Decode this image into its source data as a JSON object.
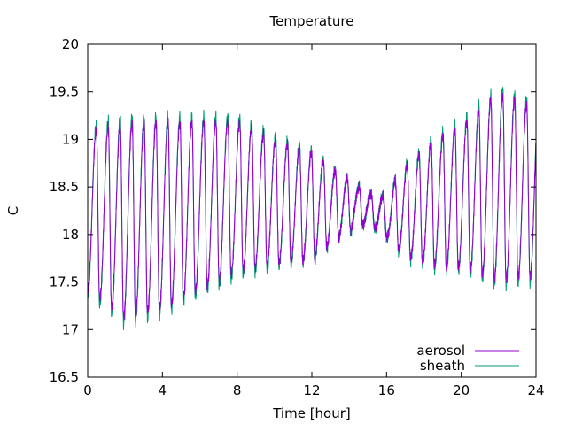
{
  "chart_data": {
    "type": "line",
    "title": "Temperature",
    "xlabel": "Time [hour]",
    "ylabel": "C",
    "xlim": [
      0,
      24
    ],
    "ylim": [
      16.5,
      20
    ],
    "xticks": [
      0,
      4,
      8,
      12,
      16,
      20,
      24
    ],
    "yticks": [
      16.5,
      17,
      17.5,
      18,
      18.5,
      19,
      19.5,
      20
    ],
    "grid": false,
    "legend_position": "bottom-right",
    "signal": {
      "period_hours": 0.64,
      "amplitude_points": [
        [
          0,
          0.9
        ],
        [
          2,
          1.1
        ],
        [
          4,
          1.05
        ],
        [
          8,
          0.85
        ],
        [
          10,
          0.7
        ],
        [
          12,
          0.6
        ],
        [
          13.5,
          0.35
        ],
        [
          14.8,
          0.18
        ],
        [
          15.8,
          0.2
        ],
        [
          17,
          0.5
        ],
        [
          18.5,
          0.7
        ],
        [
          20,
          0.8
        ],
        [
          22,
          1.05
        ],
        [
          24,
          0.95
        ]
      ],
      "center_points": [
        [
          0,
          18.25
        ],
        [
          2,
          18.15
        ],
        [
          4,
          18.2
        ],
        [
          8,
          18.4
        ],
        [
          12,
          18.3
        ],
        [
          14.5,
          18.3
        ],
        [
          16,
          18.2
        ],
        [
          18,
          18.3
        ],
        [
          20,
          18.4
        ],
        [
          22,
          18.5
        ],
        [
          24,
          18.45
        ]
      ]
    },
    "series": [
      {
        "name": "aerosol",
        "color": "#9400d3",
        "offset": 0.0,
        "scale": 0.93
      },
      {
        "name": "sheath",
        "color": "#009e73",
        "offset": 0.0,
        "scale": 1.0
      }
    ]
  }
}
